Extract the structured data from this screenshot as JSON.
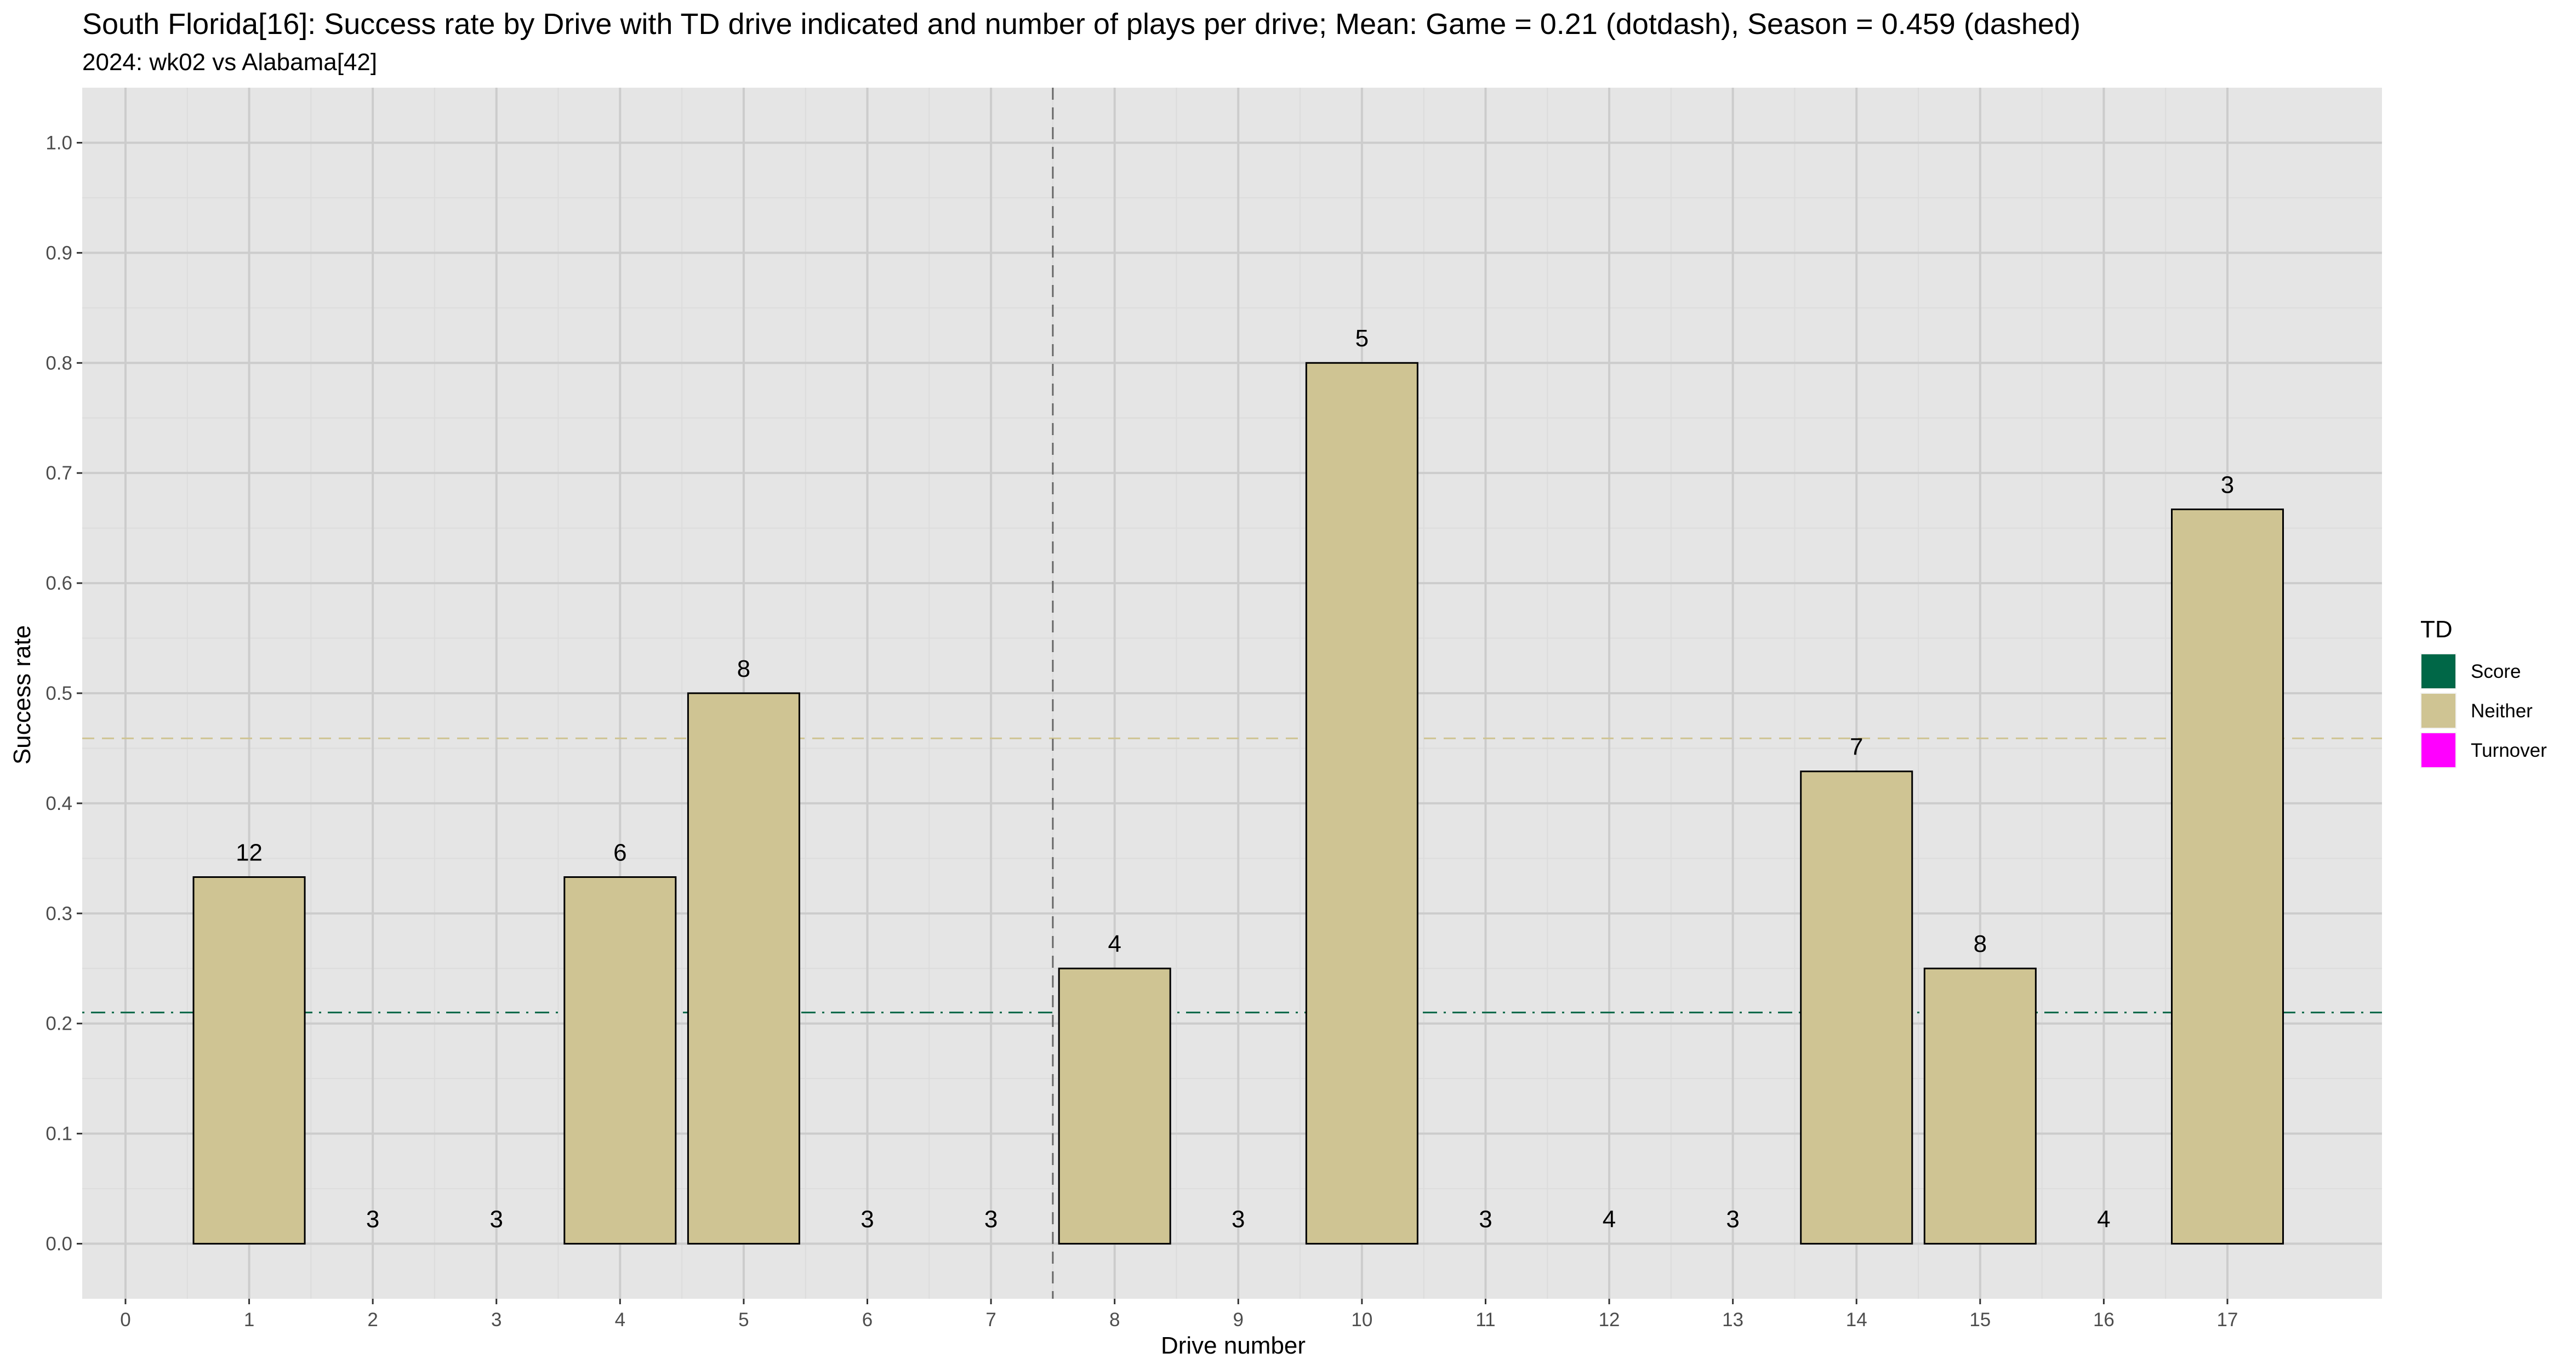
{
  "chart_data": {
    "type": "bar",
    "title": "South Florida[16]: Success rate by Drive with TD drive indicated and number of plays per drive; Mean: Game = 0.21 (dotdash), Season = 0.459 (dashed)",
    "subtitle": "2024: wk02 vs Alabama[42]",
    "xlabel": "Drive number",
    "ylabel": "Success rate",
    "x_ticks": [
      "0",
      "1",
      "2",
      "3",
      "4",
      "5",
      "6",
      "7",
      "8",
      "9",
      "10",
      "11",
      "12",
      "13",
      "14",
      "15",
      "16",
      "17"
    ],
    "y_ticks": [
      "0.0",
      "0.1",
      "0.2",
      "0.3",
      "0.4",
      "0.5",
      "0.6",
      "0.7",
      "0.8",
      "0.9",
      "1.0"
    ],
    "xlim": [
      -0.35,
      18.25
    ],
    "ylim": [
      -0.05,
      1.05
    ],
    "grid": true,
    "legend": {
      "title": "TD",
      "position": "right",
      "items": [
        {
          "label": "Score",
          "color": "#006747"
        },
        {
          "label": "Neither",
          "color": "#CFC493"
        },
        {
          "label": "Turnover",
          "color": "#FF00FF"
        }
      ]
    },
    "series": [
      {
        "drives": [
          1,
          2,
          3,
          4,
          5,
          6,
          7,
          8,
          9,
          10,
          11,
          12,
          13,
          14,
          15,
          16,
          17
        ],
        "values": [
          0.333,
          0,
          0,
          0.333,
          0.5,
          0,
          0,
          0.25,
          0,
          0.8,
          0,
          0,
          0,
          0.429,
          0.25,
          0,
          0.667
        ],
        "plays": [
          "12",
          "3",
          "3",
          "6",
          "8",
          "3",
          "3",
          "4",
          "3",
          "5",
          "3",
          "4",
          "3",
          "7",
          "8",
          "4",
          "3"
        ],
        "category": [
          "Neither",
          "Neither",
          "Neither",
          "Neither",
          "Neither",
          "Neither",
          "Neither",
          "Neither",
          "Neither",
          "Neither",
          "Neither",
          "Neither",
          "Neither",
          "Neither",
          "Neither",
          "Neither",
          "Neither"
        ]
      }
    ],
    "reference_lines": [
      {
        "axis": "y",
        "value": 0.21,
        "style": "dotdash",
        "color": "#006747"
      },
      {
        "axis": "y",
        "value": 0.459,
        "style": "dashed",
        "color": "#CFC493"
      },
      {
        "axis": "x",
        "value": 7.5,
        "style": "dashed",
        "color": "#666666"
      }
    ],
    "colors": {
      "panel_bg": "#E5E5E5",
      "grid_major": "#CCCCCC",
      "grid_minor": "#DCDCDC",
      "bar_border": "#000000"
    }
  }
}
